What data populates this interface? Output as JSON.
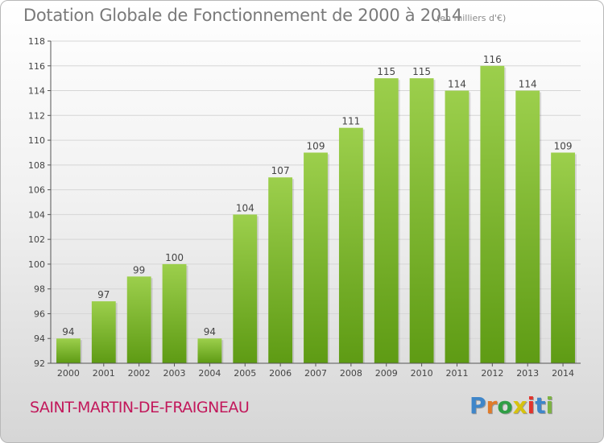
{
  "title": "Dotation Globale de Fonctionnement de 2000 à 2014",
  "subtitle": "(en milliers d'€)",
  "commune": "SAINT-MARTIN-DE-FRAIGNEAU",
  "logo": {
    "text": "Proxiti",
    "letters": [
      "P",
      "r",
      "o",
      "x",
      "i",
      "t",
      "i"
    ],
    "colors": [
      "#3f86c9",
      "#e07b2a",
      "#2f9e45",
      "#d6c20f",
      "#e2342d",
      "#3f86c9",
      "#7cb342"
    ]
  },
  "colors": {
    "bar_top": "#9ccf4c",
    "bar_bottom": "#5e9b14",
    "axis": "#555555",
    "grid": "#d6d6d6",
    "text": "#444444",
    "commune": "#c2185b"
  },
  "chart_data": {
    "type": "bar",
    "categories": [
      "2000",
      "2001",
      "2002",
      "2003",
      "2004",
      "2005",
      "2006",
      "2007",
      "2008",
      "2009",
      "2010",
      "2011",
      "2012",
      "2013",
      "2014"
    ],
    "values": [
      94,
      97,
      99,
      100,
      94,
      104,
      107,
      109,
      111,
      115,
      115,
      114,
      116,
      114,
      109
    ],
    "title": "Dotation Globale de Fonctionnement de 2000 à 2014",
    "subtitle": "(en milliers d'€)",
    "xlabel": "",
    "ylabel": "",
    "ylim": [
      92,
      118
    ],
    "yticks": [
      92,
      94,
      96,
      98,
      100,
      102,
      104,
      106,
      108,
      110,
      112,
      114,
      116,
      118
    ],
    "grid": true,
    "legend": "none"
  }
}
